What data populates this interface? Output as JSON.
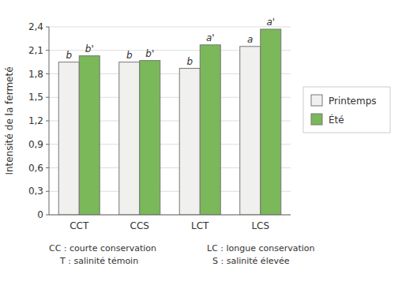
{
  "chart_data": {
    "type": "bar",
    "categories": [
      "CCT",
      "CCS",
      "LCT",
      "LCS"
    ],
    "series": [
      {
        "name": "Printemps",
        "color": "#f0f0ee",
        "values": [
          1.95,
          1.95,
          1.87,
          2.15
        ],
        "labels": [
          "b",
          "b",
          "b",
          "a"
        ]
      },
      {
        "name": "Été",
        "color": "#7ab85a",
        "values": [
          2.03,
          1.97,
          2.17,
          2.37
        ],
        "labels": [
          "b'",
          "b'",
          "a'",
          "a'"
        ]
      }
    ],
    "ylabel": "Intensité de la fermeté",
    "ylim": [
      0,
      2.4
    ],
    "yticks": [
      0,
      {
        "value": 0.3,
        "label": "0,3"
      },
      {
        "value": 0.6,
        "label": "0,6"
      },
      {
        "value": 0.9,
        "label": "0,9"
      },
      {
        "value": 1.2,
        "label": "1,2"
      },
      {
        "value": 1.5,
        "label": "1,5"
      },
      {
        "value": 1.8,
        "label": "1,8"
      },
      {
        "value": 2.1,
        "label": "2,1"
      },
      {
        "value": 2.4,
        "label": "2,4"
      }
    ],
    "grid": true,
    "legend": "right",
    "footnotes": [
      "CC : courte conservation\n    T : salinité témoin",
      "LC : longue conservation\n  S : salinité élevée"
    ]
  }
}
